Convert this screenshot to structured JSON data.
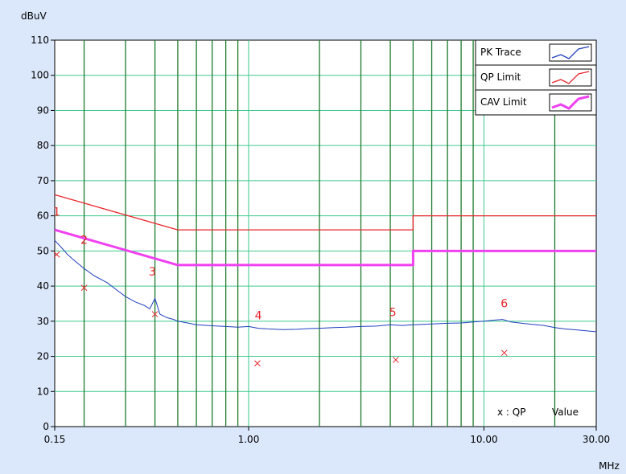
{
  "chart_data": {
    "type": "line",
    "ylabel": "dBuV",
    "xlabel": "MHz",
    "x_scale": "log",
    "xlim": [
      0.15,
      30
    ],
    "ylim": [
      0,
      110
    ],
    "y_ticks": [
      0,
      10,
      20,
      30,
      40,
      50,
      60,
      70,
      80,
      90,
      100,
      110
    ],
    "y_tick_labels": [
      "0",
      "10",
      "20",
      "30",
      "40",
      "50",
      "60",
      "70",
      "80",
      "90",
      "100",
      "110"
    ],
    "x_tick_labels": [
      {
        "value": 0.15,
        "label": "0.15"
      },
      {
        "value": 1.0,
        "label": "1.00"
      },
      {
        "value": 10.0,
        "label": "10.00"
      },
      {
        "value": 30.0,
        "label": "30.00"
      }
    ],
    "grid": true,
    "legend_position": "top-right",
    "series": [
      {
        "name": "PK Trace",
        "color": "#1f3fbf",
        "x": [
          0.15,
          0.16,
          0.17,
          0.18,
          0.2,
          0.22,
          0.25,
          0.28,
          0.3,
          0.33,
          0.36,
          0.38,
          0.4,
          0.42,
          0.45,
          0.48,
          0.5,
          0.55,
          0.6,
          0.7,
          0.8,
          0.9,
          1.0,
          1.1,
          1.2,
          1.4,
          1.6,
          1.8,
          2.0,
          2.3,
          2.6,
          3.0,
          3.5,
          4.0,
          4.5,
          5.0,
          5.5,
          6.0,
          7.0,
          8.0,
          9.0,
          10.0,
          11.0,
          12.0,
          13.0,
          15.0,
          18.0,
          20.0,
          22.0,
          25.0,
          28.0,
          30.0
        ],
        "y": [
          53,
          51,
          49,
          47.5,
          45,
          43,
          41,
          38.5,
          37,
          35.5,
          34.5,
          33.5,
          36.5,
          32,
          31,
          30.5,
          30,
          29.5,
          29,
          28.7,
          28.5,
          28.3,
          28.5,
          28,
          27.8,
          27.6,
          27.7,
          27.9,
          28,
          28.2,
          28.3,
          28.5,
          28.6,
          29,
          28.8,
          29,
          29.1,
          29.2,
          29.4,
          29.5,
          29.8,
          30,
          30.3,
          30.5,
          29.8,
          29.3,
          28.8,
          28.2,
          27.8,
          27.5,
          27.2,
          27
        ]
      },
      {
        "name": "QP Limit",
        "color": "#e8262c",
        "x": [
          0.15,
          0.5,
          5.0,
          5.0,
          30.0
        ],
        "y": [
          66,
          56,
          56,
          60,
          60
        ]
      },
      {
        "name": "CAV Limit",
        "color": "#f040f0",
        "x": [
          0.15,
          0.5,
          5.0,
          5.0,
          30.0
        ],
        "y": [
          56,
          46,
          46,
          50,
          50
        ]
      }
    ],
    "qp_values": {
      "name": "QP Value",
      "color": "#e8262c",
      "points": [
        {
          "x": 0.153,
          "y": 49
        },
        {
          "x": 0.2,
          "y": 39.5
        },
        {
          "x": 0.4,
          "y": 32
        },
        {
          "x": 1.09,
          "y": 18
        },
        {
          "x": 4.22,
          "y": 19
        },
        {
          "x": 12.2,
          "y": 21
        }
      ]
    },
    "markers": [
      {
        "label": "1",
        "x": 0.153,
        "y": 60
      },
      {
        "label": "2",
        "x": 0.2,
        "y": 52
      },
      {
        "label": "3",
        "x": 0.39,
        "y": 43
      },
      {
        "label": "4",
        "x": 1.1,
        "y": 30.5
      },
      {
        "label": "5",
        "x": 4.1,
        "y": 31.5
      },
      {
        "label": "6",
        "x": 12.2,
        "y": 34
      }
    ],
    "legend": [
      {
        "label": "PK Trace",
        "series": 0
      },
      {
        "label": "QP Limit",
        "series": 1
      },
      {
        "label": "CAV Limit",
        "series": 2
      }
    ],
    "qp_note_prefix": "x : QP",
    "qp_note_suffix": "Value"
  },
  "colors": {
    "background": "#dbe7fb",
    "plot_background": "#ffffff",
    "grid_major": "#1f7a2e",
    "grid_minor": "#3cc98d",
    "axis": "#000000"
  }
}
